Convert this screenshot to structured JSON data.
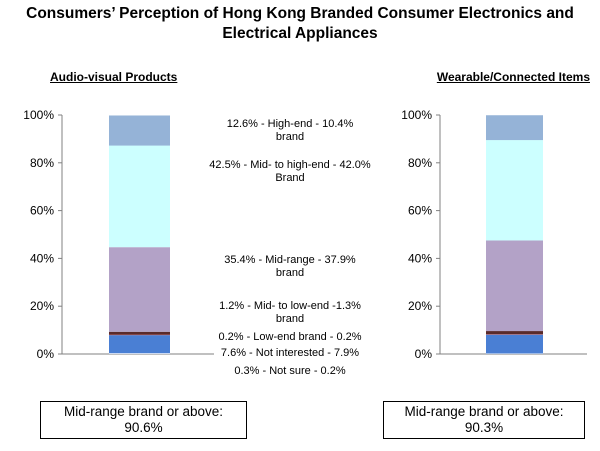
{
  "title": "Consumers’ Perception of Hong Kong Branded Consumer Electronics and Electrical Appliances",
  "chart_data": [
    {
      "type": "bar",
      "stacked": true,
      "title": "Audio-visual Products",
      "categories": [
        "Audio-visual Products"
      ],
      "ylim": [
        0,
        100
      ],
      "yticks": [
        "0%",
        "20%",
        "40%",
        "60%",
        "80%",
        "100%"
      ],
      "series": [
        {
          "name": "Not sure",
          "values": [
            0.3
          ],
          "color": "#ffffff"
        },
        {
          "name": "Not interested",
          "values": [
            7.6
          ],
          "color": "#4a7fd4"
        },
        {
          "name": "Low-end brand",
          "values": [
            0.2
          ],
          "color": "#c84a4a"
        },
        {
          "name": "Mid- to low-end brand",
          "values": [
            1.2
          ],
          "color": "#5a2a2a"
        },
        {
          "name": "Mid-range brand",
          "values": [
            35.4
          ],
          "color": "#b3a2c7"
        },
        {
          "name": "Mid- to high-end Brand",
          "values": [
            42.5
          ],
          "color": "#ccffff"
        },
        {
          "name": "High-end brand",
          "values": [
            12.6
          ],
          "color": "#95b3d7"
        }
      ]
    },
    {
      "type": "bar",
      "stacked": true,
      "title": "Wearable/Connected Items",
      "categories": [
        "Wearable/Connected Items"
      ],
      "ylim": [
        0,
        100
      ],
      "yticks": [
        "0%",
        "20%",
        "40%",
        "60%",
        "80%",
        "100%"
      ],
      "series": [
        {
          "name": "Not sure",
          "values": [
            0.2
          ],
          "color": "#ffffff"
        },
        {
          "name": "Not interested",
          "values": [
            7.9
          ],
          "color": "#4a7fd4"
        },
        {
          "name": "Low-end brand",
          "values": [
            0.2
          ],
          "color": "#c84a4a"
        },
        {
          "name": "Mid- to low-end brand",
          "values": [
            1.3
          ],
          "color": "#5a2a2a"
        },
        {
          "name": "Mid-range brand",
          "values": [
            37.9
          ],
          "color": "#b3a2c7"
        },
        {
          "name": "Mid- to high-end Brand",
          "values": [
            42.0
          ],
          "color": "#ccffff"
        },
        {
          "name": "High-end brand",
          "values": [
            10.4
          ],
          "color": "#95b3d7"
        }
      ]
    }
  ],
  "legend_labels": [
    {
      "line1": "12.6% -    High-end    - 10.4%",
      "line2": "brand"
    },
    {
      "line1": "42.5% - Mid- to high-end - 42.0%",
      "line2": "Brand"
    },
    {
      "line1": "35.4% - Mid-range - 37.9%",
      "line2": "brand"
    },
    {
      "line1": "1.2% - Mid- to low-end -1.3%",
      "line2": "brand"
    },
    {
      "line1": "0.2% -  Low-end brand  - 0.2%",
      "line2": ""
    },
    {
      "line1": "7.6% -  Not interested  - 7.9%",
      "line2": ""
    },
    {
      "line1": "0.3% - Not sure  - 0.2%",
      "line2": ""
    }
  ],
  "summary": {
    "left": {
      "label": "Mid-range brand or above:",
      "value": "90.6%"
    },
    "right": {
      "label": "Mid-range brand or above:",
      "value": "90.3%"
    }
  }
}
